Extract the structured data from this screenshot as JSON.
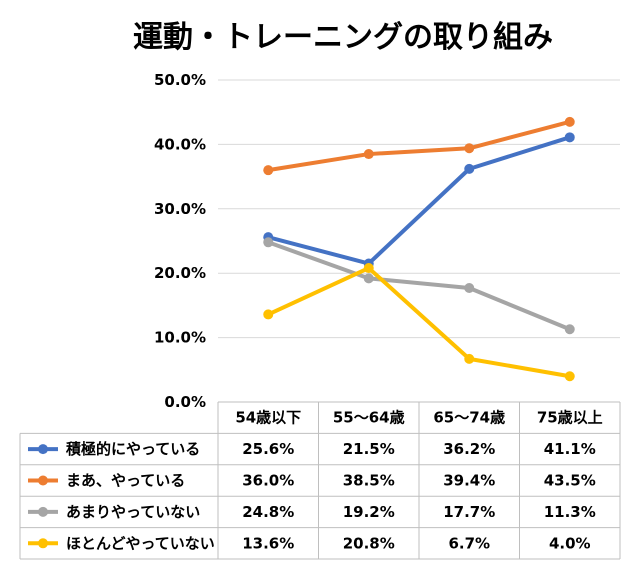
{
  "chart_data": {
    "type": "line",
    "title": "運動・トレーニングの取り組み",
    "categories": [
      "54歳以下",
      "55〜64歳",
      "65〜74歳",
      "75歳以上"
    ],
    "ylim": [
      0,
      50
    ],
    "yticks": [
      "0.0%",
      "10.0%",
      "20.0%",
      "30.0%",
      "40.0%",
      "50.0%"
    ],
    "grid": true,
    "legend_placement": "data-table-left",
    "series": [
      {
        "name": "積極的にやっている",
        "color": "#4472C4",
        "values": [
          25.6,
          21.5,
          36.2,
          41.1
        ],
        "labels": [
          "25.6%",
          "21.5%",
          "36.2%",
          "41.1%"
        ]
      },
      {
        "name": "まあ、やっている",
        "color": "#ED7D31",
        "values": [
          36.0,
          38.5,
          39.4,
          43.5
        ],
        "labels": [
          "36.0%",
          "38.5%",
          "39.4%",
          "43.5%"
        ]
      },
      {
        "name": "あまりやっていない",
        "color": "#A5A5A5",
        "values": [
          24.8,
          19.2,
          17.7,
          11.3
        ],
        "labels": [
          "24.8%",
          "19.2%",
          "17.7%",
          "11.3%"
        ]
      },
      {
        "name": "ほとんどやっていない",
        "color": "#FFC000",
        "values": [
          13.6,
          20.8,
          6.7,
          4.0
        ],
        "labels": [
          "13.6%",
          "20.8%",
          "6.7%",
          "4.0%"
        ]
      }
    ]
  }
}
